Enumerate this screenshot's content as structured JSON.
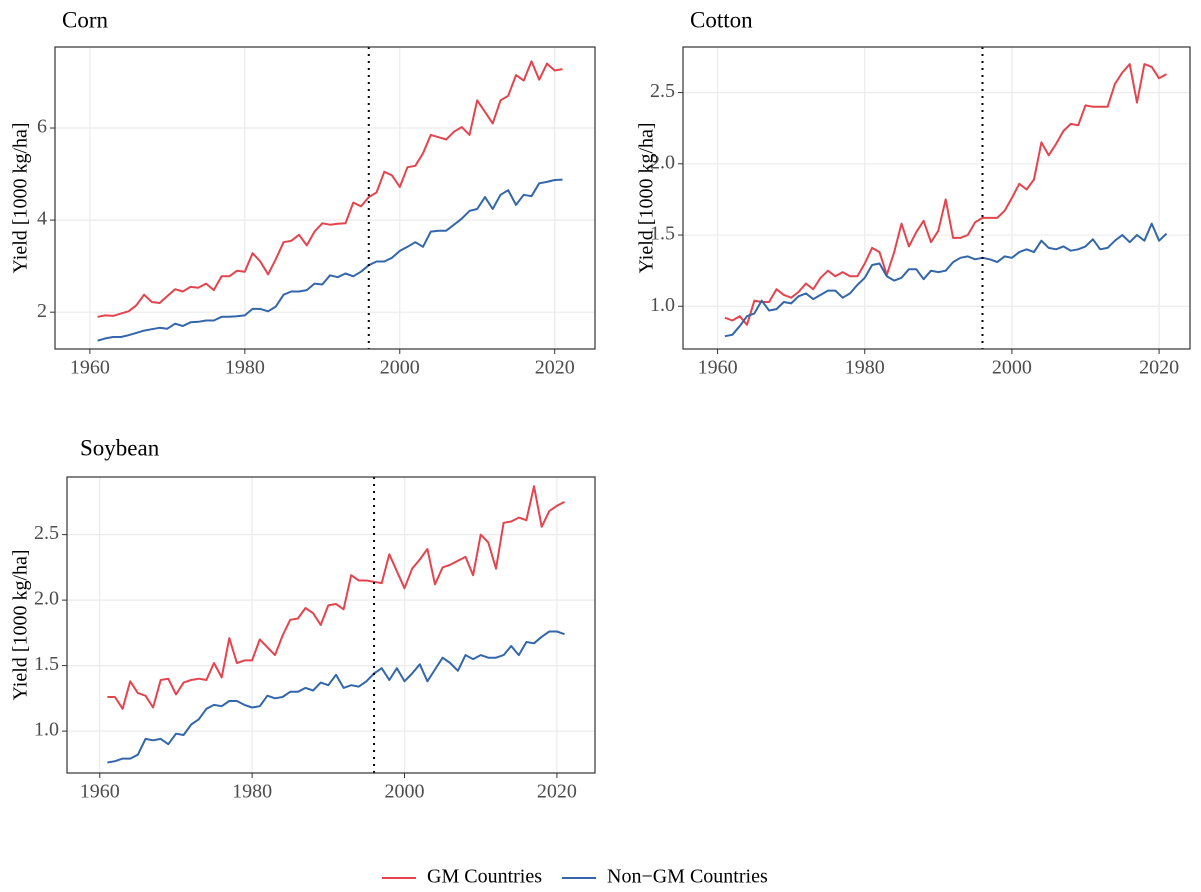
{
  "chart_data": [
    {
      "type": "line",
      "title": "Corn",
      "ylabel": "Yield [1000 kg/ha]",
      "x": [
        1961,
        1962,
        1963,
        1964,
        1965,
        1966,
        1967,
        1968,
        1969,
        1970,
        1971,
        1972,
        1973,
        1974,
        1975,
        1976,
        1977,
        1978,
        1979,
        1980,
        1981,
        1982,
        1983,
        1984,
        1985,
        1986,
        1987,
        1988,
        1989,
        1990,
        1991,
        1992,
        1993,
        1994,
        1995,
        1996,
        1997,
        1998,
        1999,
        2000,
        2001,
        2002,
        2003,
        2004,
        2005,
        2006,
        2007,
        2008,
        2009,
        2010,
        2011,
        2012,
        2013,
        2014,
        2015,
        2016,
        2017,
        2018,
        2019,
        2020,
        2021
      ],
      "series": [
        {
          "name": "GM Countries",
          "color": "#e4444e",
          "values": [
            1.9,
            1.93,
            1.92,
            1.97,
            2.02,
            2.15,
            2.38,
            2.22,
            2.2,
            2.35,
            2.5,
            2.45,
            2.55,
            2.53,
            2.62,
            2.48,
            2.78,
            2.78,
            2.9,
            2.88,
            3.28,
            3.1,
            2.82,
            3.15,
            3.52,
            3.55,
            3.68,
            3.45,
            3.75,
            3.93,
            3.9,
            3.92,
            3.93,
            4.38,
            4.3,
            4.5,
            4.6,
            5.05,
            4.97,
            4.72,
            5.15,
            5.18,
            5.45,
            5.85,
            5.8,
            5.75,
            5.92,
            6.02,
            5.85,
            6.6,
            6.35,
            6.1,
            6.6,
            6.7,
            7.15,
            7.03,
            7.45,
            7.05,
            7.4,
            7.25,
            7.28
          ]
        },
        {
          "name": "Non−GM Countries",
          "color": "#3366aa",
          "values": [
            1.38,
            1.43,
            1.46,
            1.46,
            1.5,
            1.55,
            1.6,
            1.63,
            1.66,
            1.64,
            1.75,
            1.7,
            1.78,
            1.79,
            1.82,
            1.82,
            1.9,
            1.9,
            1.91,
            1.93,
            2.07,
            2.07,
            2.02,
            2.12,
            2.38,
            2.45,
            2.45,
            2.48,
            2.62,
            2.6,
            2.8,
            2.76,
            2.84,
            2.78,
            2.88,
            3.02,
            3.1,
            3.1,
            3.18,
            3.33,
            3.42,
            3.52,
            3.42,
            3.75,
            3.77,
            3.77,
            3.9,
            4.03,
            4.2,
            4.24,
            4.5,
            4.24,
            4.55,
            4.65,
            4.33,
            4.55,
            4.52,
            4.8,
            4.83,
            4.87,
            4.88
          ]
        }
      ],
      "xlim": [
        1955.5,
        2025.2
      ],
      "ylim": [
        1.2,
        7.76
      ],
      "xticks": [
        1960,
        1980,
        2000,
        2020
      ],
      "yticks": [
        2,
        4,
        6
      ],
      "grid": true,
      "vline": 1996
    },
    {
      "type": "line",
      "title": "Cotton",
      "ylabel": "Yield [1000 kg/ha]",
      "x": [
        1961,
        1962,
        1963,
        1964,
        1965,
        1966,
        1967,
        1968,
        1969,
        1970,
        1971,
        1972,
        1973,
        1974,
        1975,
        1976,
        1977,
        1978,
        1979,
        1980,
        1981,
        1982,
        1983,
        1984,
        1985,
        1986,
        1987,
        1988,
        1989,
        1990,
        1991,
        1992,
        1993,
        1994,
        1995,
        1996,
        1997,
        1998,
        1999,
        2000,
        2001,
        2002,
        2003,
        2004,
        2005,
        2006,
        2007,
        2008,
        2009,
        2010,
        2011,
        2012,
        2013,
        2014,
        2015,
        2016,
        2017,
        2018,
        2019,
        2020,
        2021
      ],
      "series": [
        {
          "name": "GM Countries",
          "color": "#e4444e",
          "values": [
            0.92,
            0.9,
            0.93,
            0.87,
            1.04,
            1.03,
            1.03,
            1.12,
            1.08,
            1.06,
            1.1,
            1.16,
            1.12,
            1.2,
            1.25,
            1.21,
            1.24,
            1.21,
            1.21,
            1.3,
            1.41,
            1.38,
            1.22,
            1.38,
            1.58,
            1.42,
            1.52,
            1.6,
            1.45,
            1.53,
            1.75,
            1.48,
            1.48,
            1.5,
            1.59,
            1.62,
            1.62,
            1.62,
            1.67,
            1.76,
            1.86,
            1.82,
            1.89,
            2.15,
            2.06,
            2.14,
            2.23,
            2.28,
            2.27,
            2.41,
            2.4,
            2.4,
            2.4,
            2.56,
            2.64,
            2.7,
            2.43,
            2.7,
            2.68,
            2.6,
            2.63
          ]
        },
        {
          "name": "Non−GM Countries",
          "color": "#3366aa",
          "values": [
            0.79,
            0.8,
            0.86,
            0.93,
            0.95,
            1.04,
            0.97,
            0.98,
            1.03,
            1.02,
            1.07,
            1.09,
            1.05,
            1.08,
            1.11,
            1.11,
            1.06,
            1.09,
            1.15,
            1.2,
            1.29,
            1.3,
            1.21,
            1.18,
            1.2,
            1.26,
            1.26,
            1.19,
            1.25,
            1.24,
            1.25,
            1.31,
            1.34,
            1.35,
            1.33,
            1.34,
            1.33,
            1.31,
            1.35,
            1.34,
            1.38,
            1.4,
            1.38,
            1.46,
            1.41,
            1.4,
            1.42,
            1.39,
            1.4,
            1.42,
            1.47,
            1.4,
            1.41,
            1.46,
            1.5,
            1.45,
            1.5,
            1.46,
            1.58,
            1.46,
            1.51
          ]
        }
      ],
      "xlim": [
        1955.3,
        2024.2
      ],
      "ylim": [
        0.7,
        2.82
      ],
      "xticks": [
        1960,
        1980,
        2000,
        2020
      ],
      "yticks": [
        {
          "value": 1,
          "label": "1.0"
        },
        1.5,
        {
          "value": 2,
          "label": "2.0"
        },
        2.5
      ],
      "grid": true,
      "vline": 1996
    },
    {
      "type": "line",
      "title": "Soybean",
      "ylabel": "Yield [1000 kg/ha]",
      "x": [
        1961,
        1962,
        1963,
        1964,
        1965,
        1966,
        1967,
        1968,
        1969,
        1970,
        1971,
        1972,
        1973,
        1974,
        1975,
        1976,
        1977,
        1978,
        1979,
        1980,
        1981,
        1982,
        1983,
        1984,
        1985,
        1986,
        1987,
        1988,
        1989,
        1990,
        1991,
        1992,
        1993,
        1994,
        1995,
        1996,
        1997,
        1998,
        1999,
        2000,
        2001,
        2002,
        2003,
        2004,
        2005,
        2006,
        2007,
        2008,
        2009,
        2010,
        2011,
        2012,
        2013,
        2014,
        2015,
        2016,
        2017,
        2018,
        2019,
        2020,
        2021
      ],
      "series": [
        {
          "name": "GM Countries",
          "color": "#e4444e",
          "values": [
            1.26,
            1.26,
            1.17,
            1.38,
            1.29,
            1.27,
            1.18,
            1.39,
            1.4,
            1.28,
            1.37,
            1.39,
            1.4,
            1.39,
            1.52,
            1.41,
            1.71,
            1.52,
            1.54,
            1.54,
            1.7,
            1.64,
            1.58,
            1.73,
            1.85,
            1.86,
            1.94,
            1.9,
            1.81,
            1.96,
            1.97,
            1.93,
            2.19,
            2.15,
            2.15,
            2.14,
            2.13,
            2.35,
            2.22,
            2.09,
            2.24,
            2.31,
            2.39,
            2.12,
            2.25,
            2.27,
            2.3,
            2.33,
            2.19,
            2.5,
            2.44,
            2.24,
            2.59,
            2.6,
            2.63,
            2.61,
            2.87,
            2.56,
            2.68,
            2.72,
            2.75
          ]
        },
        {
          "name": "Non−GM Countries",
          "color": "#3366aa",
          "values": [
            0.76,
            0.77,
            0.79,
            0.79,
            0.82,
            0.94,
            0.93,
            0.94,
            0.9,
            0.98,
            0.97,
            1.05,
            1.09,
            1.17,
            1.2,
            1.19,
            1.23,
            1.23,
            1.2,
            1.18,
            1.19,
            1.27,
            1.25,
            1.26,
            1.3,
            1.3,
            1.33,
            1.31,
            1.37,
            1.35,
            1.43,
            1.33,
            1.35,
            1.34,
            1.38,
            1.44,
            1.48,
            1.39,
            1.48,
            1.38,
            1.44,
            1.51,
            1.38,
            1.47,
            1.56,
            1.52,
            1.46,
            1.58,
            1.55,
            1.58,
            1.56,
            1.56,
            1.58,
            1.65,
            1.58,
            1.68,
            1.67,
            1.72,
            1.76,
            1.76,
            1.74
          ]
        }
      ],
      "xlim": [
        1955.7,
        2025
      ],
      "ylim": [
        0.68,
        2.94
      ],
      "xticks": [
        1960,
        1980,
        2000,
        2020
      ],
      "yticks": [
        {
          "value": 1,
          "label": "1.0"
        },
        1.5,
        {
          "value": 2,
          "label": "2.0"
        },
        2.5
      ],
      "grid": true,
      "vline": 1996
    }
  ],
  "legend": "bottom"
}
